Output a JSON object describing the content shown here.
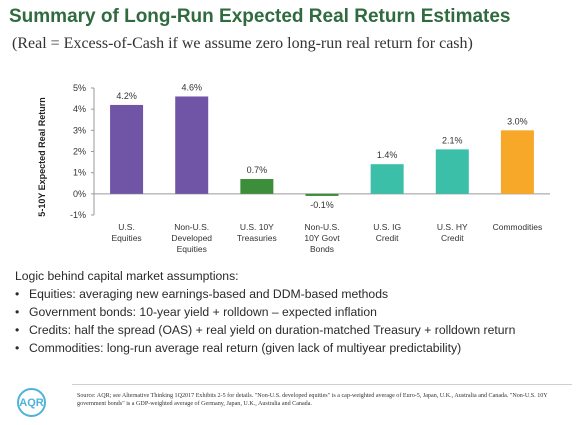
{
  "title": "Summary of Long-Run Expected Real Return Estimates",
  "subtitle": "(Real = Excess-of-Cash if we assume zero long-run real return for cash)",
  "chart_data": {
    "type": "bar",
    "categories": [
      [
        "U.S.",
        "Equities"
      ],
      [
        "Non-U.S.",
        "Developed",
        "Equities"
      ],
      [
        "U.S. 10Y",
        "Treasuries"
      ],
      [
        "Non-U.S.",
        "10Y Govt",
        "Bonds"
      ],
      [
        "U.S. IG",
        "Credit"
      ],
      [
        "U.S. HY",
        "Credit"
      ],
      [
        "Commodities"
      ]
    ],
    "values": [
      4.2,
      4.6,
      0.7,
      -0.1,
      1.4,
      2.1,
      3.0
    ],
    "data_labels": [
      "4.2%",
      "4.6%",
      "0.7%",
      "-0.1%",
      "1.4%",
      "2.1%",
      "3.0%"
    ],
    "colors": [
      "#7055a6",
      "#7055a6",
      "#3c8e3a",
      "#3c8e3a",
      "#3bbfa9",
      "#3bbfa9",
      "#f7a829"
    ],
    "ylabel": "5-10Y Expected Real Return",
    "ylim": [
      -1,
      5
    ],
    "yticks": [
      5,
      4,
      3,
      2,
      1,
      0,
      -1
    ],
    "ytick_labels": [
      "5%",
      "4%",
      "3%",
      "2%",
      "1%",
      "0%",
      "-1%"
    ],
    "grid": false
  },
  "logic": {
    "heading": "Logic behind capital market assumptions:",
    "items": [
      "Equities: averaging new earnings-based and DDM-based methods",
      "Government bonds: 10-year yield + rolldown – expected inflation",
      "Credits: half the spread (OAS) + real yield on duration-matched Treasury + rolldown return",
      "Commodities: long-run average real return (given lack of multiyear predictability)"
    ]
  },
  "logo_text": "AQR",
  "source": "Source: AQR; see Alternative Thinking 1Q2017 Exhibits 2-5 for details. \"Non-U.S. developed equities\" is a cap-weighted average of Euro-5, Japan, U.K., Australia and Canada. \"Non-U.S. 10Y government bonds\" is a GDP-weighted average of Germany, Japan, U.K., Australia and Canada."
}
